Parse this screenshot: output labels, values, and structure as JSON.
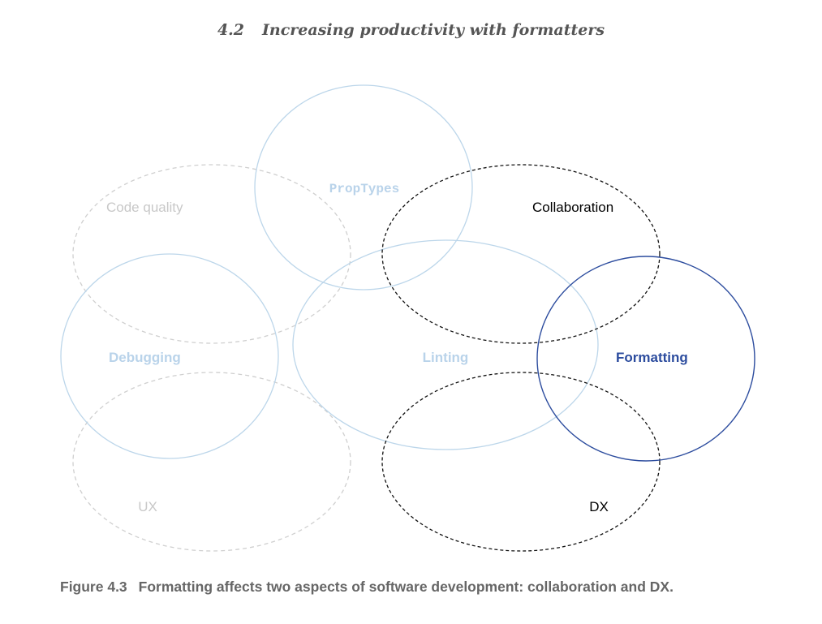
{
  "header": {
    "section_number": "4.2",
    "section_title": "Increasing productivity with formatters"
  },
  "diagram": {
    "labels": {
      "code_quality": "Code quality",
      "proptypes": "PropTypes",
      "collaboration": "Collaboration",
      "debugging": "Debugging",
      "linting": "Linting",
      "formatting": "Formatting",
      "ux": "UX",
      "dx": "DX"
    },
    "colors": {
      "faded_gray": "#cfcfcf",
      "faded_blue": "#bcd6ea",
      "label_gray": "#c8c8c8",
      "label_blue": "#b9d3ea",
      "highlight_black": "#000000",
      "formatting_blue": "#2c4c9e"
    }
  },
  "caption": {
    "figure_number": "Figure 4.3",
    "text": "Formatting affects two aspects of software development: collaboration and DX."
  }
}
